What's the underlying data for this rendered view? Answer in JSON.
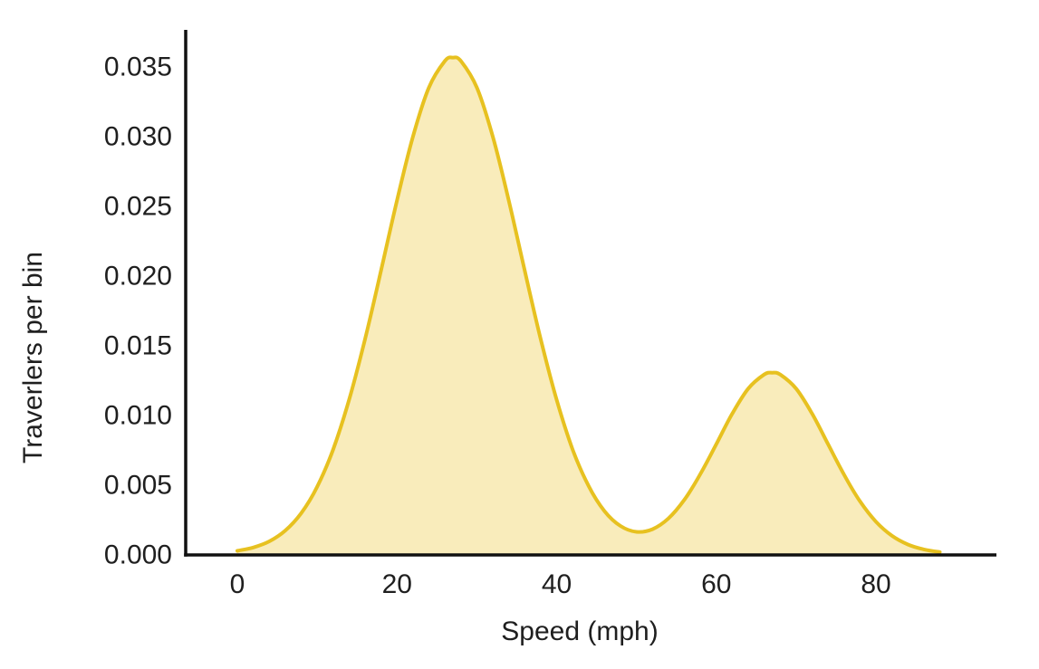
{
  "chart_data": {
    "type": "area",
    "subtype": "kde-density",
    "title": "",
    "xlabel": "Speed (mph)",
    "ylabel": "Traverlers per bin",
    "x_ticks": [
      {
        "value": 0,
        "label": "0"
      },
      {
        "value": 20,
        "label": "20"
      },
      {
        "value": 40,
        "label": "40"
      },
      {
        "value": 60,
        "label": "60"
      },
      {
        "value": 80,
        "label": "80"
      }
    ],
    "y_ticks": [
      {
        "value": 0.0,
        "label": "0.000"
      },
      {
        "value": 0.005,
        "label": "0.005"
      },
      {
        "value": 0.01,
        "label": "0.010"
      },
      {
        "value": 0.015,
        "label": "0.015"
      },
      {
        "value": 0.02,
        "label": "0.020"
      },
      {
        "value": 0.025,
        "label": "0.025"
      },
      {
        "value": 0.03,
        "label": "0.030"
      },
      {
        "value": 0.035,
        "label": "0.035"
      }
    ],
    "xlim": [
      -6.5,
      95
    ],
    "ylim": [
      0,
      0.0376
    ],
    "grid": false,
    "legend": false,
    "colors": {
      "area_fill": "#F9ECBB",
      "area_stroke": "#E7C120",
      "axis": "#111111",
      "text": "#1f1f1f",
      "background": "#ffffff"
    },
    "series": [
      {
        "name": "travelers-speed-density",
        "kind": "smooth-area",
        "modes": [
          {
            "center": 27,
            "sigma": 8.5,
            "peak_height": 0.0356
          },
          {
            "center": 67,
            "sigma": 7.0,
            "peak_height": 0.013
          }
        ],
        "points": [
          [
            0,
            0.00023
          ],
          [
            2,
            0.00047
          ],
          [
            4,
            0.00091
          ],
          [
            6,
            0.00168
          ],
          [
            8,
            0.00293
          ],
          [
            10,
            0.00482
          ],
          [
            12,
            0.0075
          ],
          [
            14,
            0.01106
          ],
          [
            16,
            0.01541
          ],
          [
            18,
            0.02032
          ],
          [
            20,
            0.02536
          ],
          [
            22,
            0.02994
          ],
          [
            24,
            0.03345
          ],
          [
            26,
            0.03535
          ],
          [
            27,
            0.0356
          ],
          [
            28,
            0.03535
          ],
          [
            30,
            0.03345
          ],
          [
            32,
            0.02994
          ],
          [
            34,
            0.02536
          ],
          [
            36,
            0.02032
          ],
          [
            38,
            0.01541
          ],
          [
            40,
            0.01106
          ],
          [
            42,
            0.0075
          ],
          [
            44,
            0.00488
          ],
          [
            46,
            0.00307
          ],
          [
            48,
            0.00201
          ],
          [
            50,
            0.00159
          ],
          [
            52,
            0.00178
          ],
          [
            54,
            0.00255
          ],
          [
            56,
            0.00389
          ],
          [
            58,
            0.00573
          ],
          [
            60,
            0.00788
          ],
          [
            62,
            0.01007
          ],
          [
            64,
            0.01186
          ],
          [
            66,
            0.01287
          ],
          [
            67,
            0.013
          ],
          [
            68,
            0.01287
          ],
          [
            70,
            0.01186
          ],
          [
            72,
            0.01007
          ],
          [
            74,
            0.00788
          ],
          [
            76,
            0.00569
          ],
          [
            78,
            0.00378
          ],
          [
            80,
            0.00232
          ],
          [
            82,
            0.00131
          ],
          [
            84,
            0.00068
          ],
          [
            86,
            0.00033
          ],
          [
            88,
            0.00014
          ]
        ]
      }
    ]
  }
}
